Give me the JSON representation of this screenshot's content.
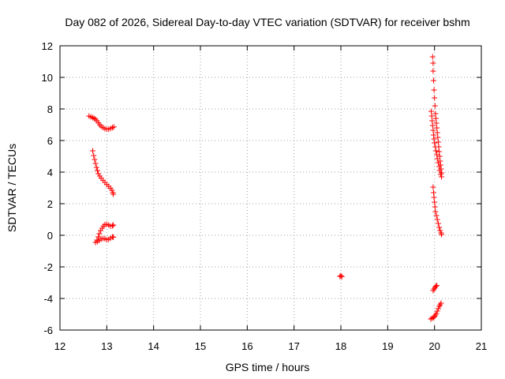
{
  "chart_data": {
    "type": "scatter",
    "title": "Day 082 of 2026, Sidereal Day-to-day VTEC variation (SDTVAR) for receiver bshm",
    "xlabel": "GPS time / hours",
    "ylabel": "SDTVAR / TECUs",
    "xlim": [
      12,
      21
    ],
    "ylim": [
      -6,
      12
    ],
    "x_ticks": [
      "12",
      "13",
      "14",
      "15",
      "16",
      "17",
      "18",
      "19",
      "20",
      "21"
    ],
    "y_ticks": [
      "-6",
      "-4",
      "-2",
      "0",
      "2",
      "4",
      "6",
      "8",
      "10",
      "12"
    ],
    "grid": true,
    "marker": "plus",
    "color": "#ff0000",
    "series": [
      {
        "name": "SDTVAR",
        "points": [
          [
            12.62,
            7.55
          ],
          [
            12.66,
            7.5
          ],
          [
            12.7,
            7.45
          ],
          [
            12.73,
            7.4
          ],
          [
            12.76,
            7.35
          ],
          [
            12.79,
            7.25
          ],
          [
            12.82,
            7.12
          ],
          [
            12.85,
            7.0
          ],
          [
            12.88,
            6.9
          ],
          [
            12.92,
            6.82
          ],
          [
            12.96,
            6.75
          ],
          [
            13.0,
            6.72
          ],
          [
            13.04,
            6.72
          ],
          [
            13.08,
            6.76
          ],
          [
            13.12,
            6.82
          ],
          [
            13.15,
            6.86
          ],
          [
            12.7,
            5.35
          ],
          [
            12.72,
            5.05
          ],
          [
            12.74,
            4.8
          ],
          [
            12.76,
            4.55
          ],
          [
            12.78,
            4.3
          ],
          [
            12.8,
            4.1
          ],
          [
            12.82,
            3.9
          ],
          [
            12.85,
            3.75
          ],
          [
            12.88,
            3.62
          ],
          [
            12.92,
            3.48
          ],
          [
            12.96,
            3.35
          ],
          [
            13.0,
            3.22
          ],
          [
            13.04,
            3.1
          ],
          [
            13.08,
            2.98
          ],
          [
            13.11,
            2.85
          ],
          [
            13.13,
            2.7
          ],
          [
            13.14,
            2.6
          ],
          [
            12.76,
            -0.45
          ],
          [
            12.79,
            -0.3
          ],
          [
            12.82,
            -0.1
          ],
          [
            12.84,
            0.1
          ],
          [
            12.87,
            0.3
          ],
          [
            12.9,
            0.45
          ],
          [
            12.93,
            0.58
          ],
          [
            12.96,
            0.68
          ],
          [
            13.0,
            0.7
          ],
          [
            13.04,
            0.65
          ],
          [
            13.08,
            0.58
          ],
          [
            13.12,
            0.6
          ],
          [
            13.14,
            0.65
          ],
          [
            12.8,
            -0.4
          ],
          [
            12.84,
            -0.32
          ],
          [
            12.88,
            -0.24
          ],
          [
            12.92,
            -0.2
          ],
          [
            12.96,
            -0.22
          ],
          [
            13.0,
            -0.28
          ],
          [
            13.04,
            -0.26
          ],
          [
            13.08,
            -0.18
          ],
          [
            13.12,
            -0.1
          ],
          [
            13.14,
            -0.12
          ],
          [
            17.98,
            -2.6
          ],
          [
            18.0,
            -2.56
          ],
          [
            18.02,
            -2.62
          ],
          [
            19.93,
            7.85
          ],
          [
            19.94,
            7.55
          ],
          [
            19.95,
            7.25
          ],
          [
            19.96,
            6.95
          ],
          [
            19.97,
            6.65
          ],
          [
            19.98,
            6.35
          ],
          [
            19.99,
            6.1
          ],
          [
            20.0,
            5.85
          ],
          [
            20.02,
            5.6
          ],
          [
            20.03,
            5.35
          ],
          [
            20.05,
            5.1
          ],
          [
            20.06,
            4.85
          ],
          [
            20.08,
            4.6
          ],
          [
            20.1,
            4.35
          ],
          [
            20.11,
            4.1
          ],
          [
            20.13,
            3.85
          ],
          [
            19.96,
            11.3
          ],
          [
            19.97,
            10.9
          ],
          [
            19.97,
            10.4
          ],
          [
            19.98,
            9.8
          ],
          [
            19.99,
            9.2
          ],
          [
            20.0,
            8.7
          ],
          [
            20.01,
            8.2
          ],
          [
            20.02,
            7.7
          ],
          [
            20.03,
            7.4
          ],
          [
            20.04,
            7.1
          ],
          [
            20.05,
            6.8
          ],
          [
            20.06,
            6.5
          ],
          [
            20.07,
            6.2
          ],
          [
            20.08,
            5.9
          ],
          [
            20.09,
            5.6
          ],
          [
            20.1,
            5.3
          ],
          [
            20.11,
            5.0
          ],
          [
            20.12,
            4.7
          ],
          [
            20.13,
            4.45
          ],
          [
            20.14,
            4.2
          ],
          [
            20.15,
            3.95
          ],
          [
            20.15,
            3.7
          ],
          [
            19.97,
            3.05
          ],
          [
            19.98,
            2.7
          ],
          [
            19.99,
            2.4
          ],
          [
            20.0,
            2.1
          ],
          [
            20.01,
            1.8
          ],
          [
            20.02,
            1.5
          ],
          [
            20.04,
            1.25
          ],
          [
            20.06,
            1.0
          ],
          [
            20.08,
            0.75
          ],
          [
            20.1,
            0.5
          ],
          [
            20.12,
            0.3
          ],
          [
            20.14,
            0.15
          ],
          [
            20.15,
            0.05
          ],
          [
            19.97,
            -3.5
          ],
          [
            19.99,
            -3.4
          ],
          [
            20.01,
            -3.3
          ],
          [
            20.03,
            -3.22
          ],
          [
            20.05,
            -3.18
          ],
          [
            19.92,
            -5.3
          ],
          [
            19.95,
            -5.25
          ],
          [
            19.98,
            -5.2
          ],
          [
            20.0,
            -5.15
          ],
          [
            20.02,
            -5.05
          ],
          [
            20.04,
            -4.95
          ],
          [
            20.06,
            -4.8
          ],
          [
            20.08,
            -4.65
          ],
          [
            20.1,
            -4.5
          ],
          [
            20.12,
            -4.4
          ],
          [
            20.14,
            -4.3
          ]
        ]
      }
    ]
  }
}
